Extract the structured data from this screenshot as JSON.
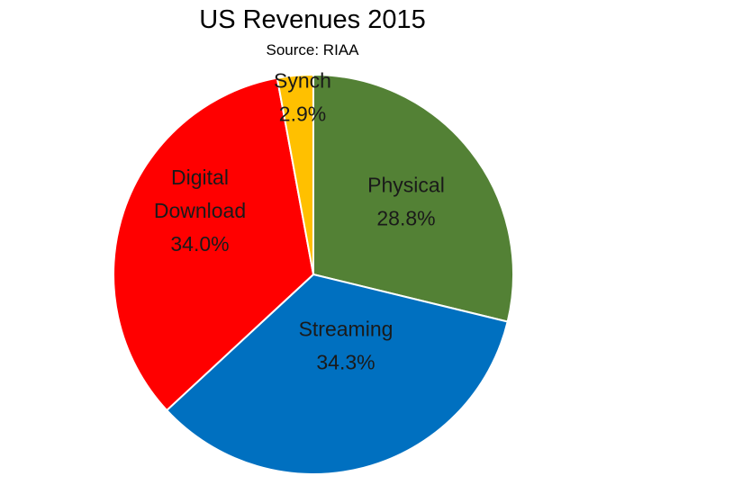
{
  "chart_data": {
    "type": "pie",
    "title": "US Revenues 2015",
    "subtitle": "Source: RIAA",
    "start_angle_deg": 0,
    "direction": "clockwise",
    "slices": [
      {
        "name": "Physical",
        "value": 28.8,
        "value_label": "28.8%",
        "color": "#538135"
      },
      {
        "name": "Streaming",
        "value": 34.3,
        "value_label": "34.3%",
        "color": "#0070c0"
      },
      {
        "name": "Digital Download",
        "value": 34.0,
        "value_label": "34.0%",
        "color": "#ff0000"
      },
      {
        "name": "Synch",
        "value": 2.9,
        "value_label": "2.9%",
        "color": "#ffc000"
      }
    ]
  }
}
